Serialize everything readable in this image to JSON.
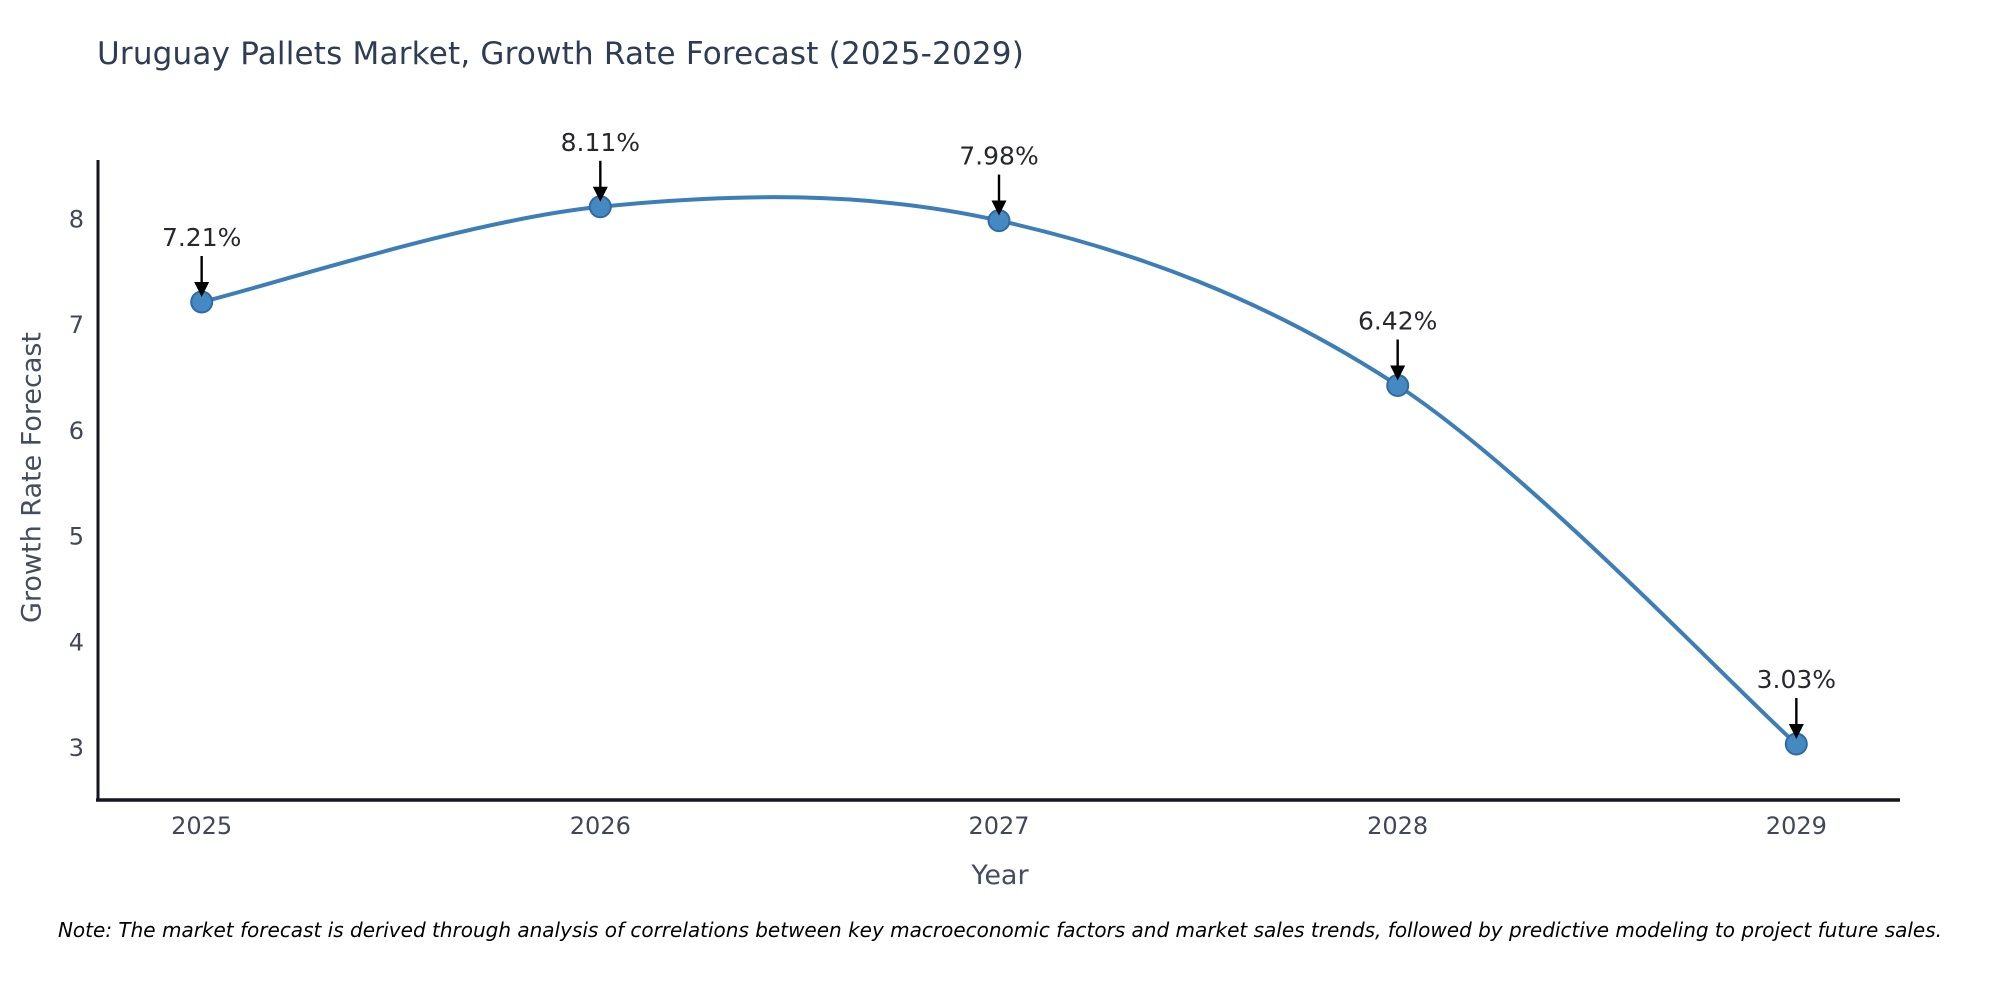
{
  "title": "Uruguay Pallets Market, Growth Rate Forecast (2025-2029)",
  "note": "Note: The market forecast is derived through analysis of correlations between key macroeconomic factors and market sales trends, followed by predictive modeling to project future sales.",
  "chart_data": {
    "type": "line",
    "title": "Uruguay Pallets Market, Growth Rate Forecast (2025-2029)",
    "xlabel": "Year",
    "ylabel": "Growth Rate Forecast",
    "categories": [
      "2025",
      "2026",
      "2027",
      "2028",
      "2029"
    ],
    "x": [
      2025,
      2026,
      2027,
      2028,
      2029
    ],
    "values": [
      7.21,
      8.11,
      7.98,
      6.42,
      3.03
    ],
    "point_labels": [
      "7.21%",
      "8.11%",
      "7.98%",
      "6.42%",
      "3.03%"
    ],
    "yticks": [
      3,
      4,
      5,
      6,
      7,
      8
    ],
    "xlim": [
      2024.74,
      2029.26
    ],
    "ylim": [
      2.5,
      8.6
    ],
    "grid": false,
    "legend": "none",
    "curve": "spline",
    "annotation_style": "label-above-with-down-arrow",
    "colors": {
      "line": "#3d7eb8",
      "marker_fill": "#4589c2",
      "marker_edge": "#2f6ba3",
      "annotation_arrow": "#000000",
      "annotation_text": "#26282e",
      "axis": "#14161f",
      "tick_text": "#404756",
      "axis_label_text": "#434d5e",
      "title_text": "#2e3d54",
      "background": "#ffffff"
    }
  }
}
